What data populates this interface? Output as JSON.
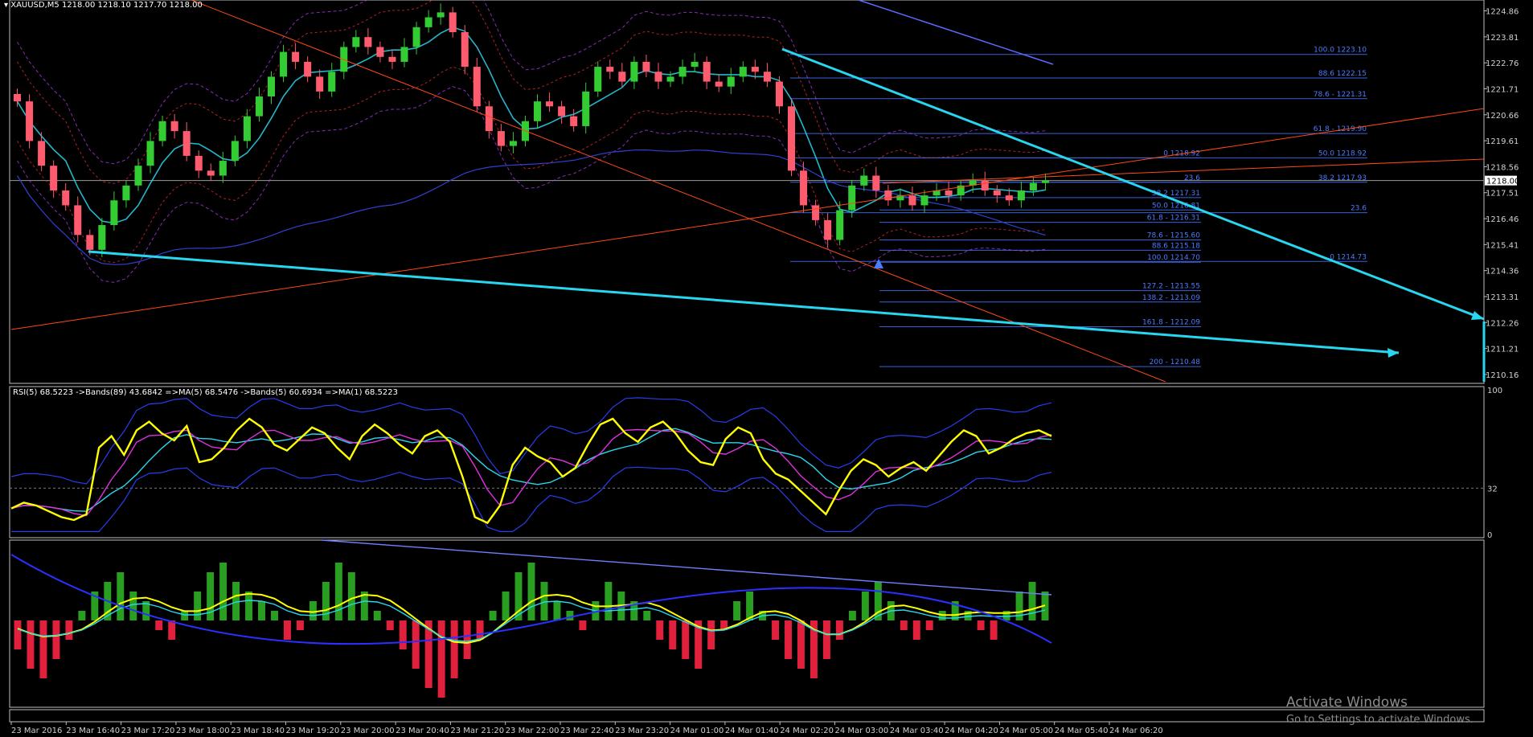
{
  "header": {
    "symbol": "XAUUSD,M5",
    "ohlc": "1218.00 1218.10 1217.70 1218.00",
    "rsi_label": "RSI(5) 68.5223  ->Bands(89) 43.6842  =>MA(5) 68.5476  ->Bands(5) 60.6934  =>MA(1) 68.5223"
  },
  "activation": {
    "title": "Activate Windows",
    "subtitle": "Go to Settings to activate Windows."
  },
  "colors": {
    "background": "#000000",
    "bull_candle": "#33cc33",
    "bear_candle": "#ff5b6e",
    "trend_cyan": "#28d7ef",
    "fib_blue": "#3a62d8",
    "fib_text": "#4d7bff",
    "orange_line": "#ff4a14",
    "rsi_yellow": "#ffff00",
    "macd_green": "#2a9e20",
    "macd_red": "#e0203c",
    "price_tag_bg": "#ffffff",
    "current_line": "#9a9a9a"
  },
  "chart_data": [
    {
      "type": "candlestick",
      "symbol": "XAUUSD",
      "timeframe": "M5",
      "current_price": "1218.00",
      "ylim": [
        1209.8,
        1225.3
      ],
      "y_ticks": [
        "1224.86",
        "1223.81",
        "1222.76",
        "1221.71",
        "1220.66",
        "1219.61",
        "1218.56",
        "1217.51",
        "1216.46",
        "1215.41",
        "1214.36",
        "1213.31",
        "1212.26",
        "1211.21",
        "1210.16"
      ],
      "x_ticks": [
        "23 Mar 2016",
        "23 Mar 16:40",
        "23 Mar 17:20",
        "23 Mar 18:00",
        "23 Mar 18:40",
        "23 Mar 19:20",
        "23 Mar 20:00",
        "23 Mar 20:40",
        "23 Mar 21:20",
        "23 Mar 22:00",
        "23 Mar 22:40",
        "23 Mar 23:20",
        "24 Mar 01:00",
        "24 Mar 01:40",
        "24 Mar 02:20",
        "24 Mar 03:00",
        "24 Mar 03:40",
        "24 Mar 04:20",
        "24 Mar 05:00",
        "24 Mar 05:40",
        "24 Mar 06:20"
      ],
      "close_path": [
        1221.2,
        1219.6,
        1218.6,
        1217.6,
        1217.0,
        1215.8,
        1215.2,
        1216.2,
        1217.2,
        1217.8,
        1218.6,
        1219.6,
        1220.4,
        1220.0,
        1219.0,
        1218.4,
        1218.2,
        1218.8,
        1219.6,
        1220.6,
        1221.4,
        1222.2,
        1223.2,
        1222.8,
        1222.2,
        1221.6,
        1222.4,
        1223.4,
        1223.8,
        1223.4,
        1223.0,
        1222.8,
        1223.4,
        1224.2,
        1224.6,
        1224.8,
        1224.0,
        1222.6,
        1221.0,
        1220.0,
        1219.4,
        1219.6,
        1220.4,
        1221.2,
        1221.0,
        1220.6,
        1220.2,
        1221.6,
        1222.6,
        1222.4,
        1222.0,
        1222.8,
        1222.4,
        1222.0,
        1222.2,
        1222.6,
        1222.8,
        1222.0,
        1221.8,
        1222.2,
        1222.6,
        1222.4,
        1222.0,
        1221.0,
        1218.4,
        1217.0,
        1216.4,
        1215.6,
        1216.8,
        1217.8,
        1218.2,
        1217.6,
        1217.2,
        1217.4,
        1217.0,
        1217.4,
        1217.6,
        1217.4,
        1217.8,
        1218.0,
        1217.6,
        1217.4,
        1217.2,
        1217.6,
        1217.9,
        1218.0
      ],
      "fibonacci_set_1": [
        {
          "label": "100.0 1223.10",
          "price": 1223.1
        },
        {
          "label": "88.6 1222.15",
          "price": 1222.15
        },
        {
          "label": "78.6 - 1221.31",
          "price": 1221.31
        },
        {
          "label": "61.8 - 1219.90",
          "price": 1219.9
        },
        {
          "label": "50.0 1218.92",
          "price": 1218.92
        },
        {
          "label": "38.2 1217.93",
          "price": 1217.93
        },
        {
          "label": "23.6",
          "price": 1216.7
        },
        {
          "label": "0 1214.73",
          "price": 1214.73
        }
      ],
      "fibonacci_set_2": [
        {
          "label": "0 1218.92",
          "price": 1218.92
        },
        {
          "label": "23.6",
          "price": 1217.93
        },
        {
          "label": "38.2 1217.31",
          "price": 1217.31
        },
        {
          "label": "50.0 1216.81",
          "price": 1216.81
        },
        {
          "label": "61.8 - 1216.31",
          "price": 1216.31
        },
        {
          "label": "78.6 - 1215.60",
          "price": 1215.6
        },
        {
          "label": "88.6 1215.18",
          "price": 1215.18
        },
        {
          "label": "100.0 1214.70",
          "price": 1214.7
        },
        {
          "label": "127.2 - 1213.55",
          "price": 1213.55
        },
        {
          "label": "138.2 - 1213.09",
          "price": 1213.09
        },
        {
          "label": "161.8 - 1212.09",
          "price": 1212.09
        },
        {
          "label": "200 - 1210.48",
          "price": 1210.48
        }
      ]
    },
    {
      "type": "line",
      "name": "RSI(5)",
      "ylim": [
        0,
        100
      ],
      "y_ticks": [
        "100",
        "32",
        "0"
      ],
      "level": 32,
      "values": [
        18,
        22,
        20,
        16,
        12,
        10,
        14,
        60,
        68,
        55,
        72,
        78,
        70,
        65,
        75,
        50,
        52,
        60,
        72,
        80,
        74,
        62,
        58,
        66,
        74,
        70,
        60,
        52,
        68,
        76,
        70,
        62,
        56,
        68,
        72,
        64,
        40,
        12,
        8,
        20,
        48,
        60,
        54,
        50,
        40,
        46,
        62,
        76,
        80,
        70,
        64,
        74,
        78,
        70,
        58,
        50,
        48,
        66,
        74,
        70,
        52,
        42,
        38,
        30,
        22,
        14,
        30,
        44,
        52,
        48,
        40,
        46,
        50,
        44,
        54,
        64,
        72,
        68,
        56,
        60,
        66,
        70,
        72,
        68
      ]
    },
    {
      "type": "bar",
      "name": "MACD histogram",
      "values": [
        -3,
        -5,
        -6,
        -4,
        -2,
        1,
        3,
        4,
        5,
        3,
        2,
        -1,
        -2,
        1,
        3,
        5,
        6,
        4,
        3,
        2,
        1,
        -2,
        -1,
        2,
        4,
        6,
        5,
        3,
        1,
        -1,
        -3,
        -5,
        -7,
        -8,
        -6,
        -4,
        -2,
        1,
        3,
        5,
        6,
        4,
        2,
        1,
        -1,
        2,
        4,
        3,
        2,
        1,
        -2,
        -3,
        -4,
        -5,
        -3,
        -1,
        2,
        3,
        1,
        -2,
        -4,
        -5,
        -6,
        -4,
        -2,
        1,
        3,
        4,
        2,
        -1,
        -2,
        -1,
        1,
        2,
        1,
        -1,
        -2,
        1,
        3,
        4,
        3
      ]
    }
  ]
}
